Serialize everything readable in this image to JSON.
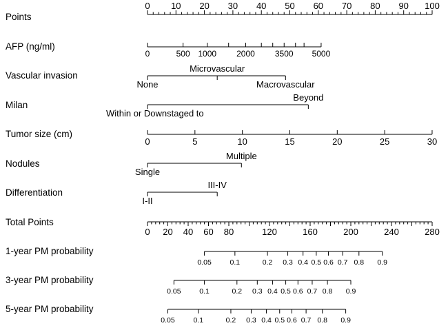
{
  "chart_data": {
    "type": "nomogram",
    "title": "",
    "rows": [
      {
        "name": "Points",
        "axis_range": [
          0,
          100
        ],
        "ticks": [
          {
            "value": 0,
            "label": "0"
          },
          {
            "value": 10,
            "label": "10"
          },
          {
            "value": 20,
            "label": "20"
          },
          {
            "value": 30,
            "label": "30"
          },
          {
            "value": 40,
            "label": "40"
          },
          {
            "value": 50,
            "label": "50"
          },
          {
            "value": 60,
            "label": "60"
          },
          {
            "value": 70,
            "label": "70"
          },
          {
            "value": 80,
            "label": "80"
          },
          {
            "value": 90,
            "label": "90"
          },
          {
            "value": 100,
            "label": "100"
          }
        ],
        "minor_step": 2
      },
      {
        "name": "AFP (ng/ml)",
        "ticks": [
          {
            "value": 0,
            "points": 0,
            "label": "0"
          },
          {
            "value": 500,
            "points": 12.5,
            "label": "500"
          },
          {
            "value": 1000,
            "points": 21,
            "label": "1000"
          },
          {
            "value": 1500,
            "points": 28.5
          },
          {
            "value": 2000,
            "points": 34.5,
            "label": "2000"
          },
          {
            "value": 2500,
            "points": 40
          },
          {
            "value": 3000,
            "points": 44
          },
          {
            "value": 3500,
            "points": 48,
            "label": "3500"
          },
          {
            "value": 4000,
            "points": 52
          },
          {
            "value": 4500,
            "points": 55
          },
          {
            "value": 5000,
            "points": 61,
            "label": "5000"
          }
        ]
      },
      {
        "name": "Vascular invasion",
        "categories": [
          {
            "label": "None",
            "points": 0
          },
          {
            "label": "Microvascular",
            "points": 24.5
          },
          {
            "label": "Macrovascular",
            "points": 48.5
          }
        ]
      },
      {
        "name": "Milan",
        "categories": [
          {
            "label": "Within or Downstaged to",
            "points": 0
          },
          {
            "label": "Beyond",
            "points": 56.5
          }
        ]
      },
      {
        "name": "Tumor size (cm)",
        "axis_range": [
          0,
          30
        ],
        "points_per_unit": 3.333,
        "ticks": [
          {
            "value": 0,
            "label": "0"
          },
          {
            "value": 5,
            "label": "5"
          },
          {
            "value": 10,
            "label": "10"
          },
          {
            "value": 15,
            "label": "15"
          },
          {
            "value": 20,
            "label": "20"
          },
          {
            "value": 25,
            "label": "25"
          },
          {
            "value": 30,
            "label": "30"
          }
        ]
      },
      {
        "name": "Nodules",
        "categories": [
          {
            "label": "Single",
            "points": 0
          },
          {
            "label": "Multiple",
            "points": 33
          }
        ]
      },
      {
        "name": "Differentiation",
        "categories": [
          {
            "label": "I-II",
            "points": 0
          },
          {
            "label": "III-IV",
            "points": 24.5
          }
        ]
      },
      {
        "name": "Total Points",
        "axis_range": [
          0,
          280
        ],
        "ticks": [
          {
            "value": 0,
            "label": "0"
          },
          {
            "value": 20,
            "label": "20"
          },
          {
            "value": 40,
            "label": "40"
          },
          {
            "value": 60,
            "label": "60"
          },
          {
            "value": 80,
            "label": "80"
          },
          {
            "value": 120,
            "label": "120"
          },
          {
            "value": 160,
            "label": "160"
          },
          {
            "value": 200,
            "label": "200"
          },
          {
            "value": 240,
            "label": "240"
          },
          {
            "value": 280,
            "label": "280"
          }
        ],
        "minor_step": 4
      },
      {
        "name": "1-year PM probability",
        "ticks": [
          {
            "value": 0.05,
            "total_points": 56,
            "label": "0.05"
          },
          {
            "value": 0.1,
            "total_points": 86,
            "label": "0.1"
          },
          {
            "value": 0.2,
            "total_points": 118,
            "label": "0.2"
          },
          {
            "value": 0.3,
            "total_points": 138,
            "label": "0.3"
          },
          {
            "value": 0.4,
            "total_points": 153,
            "label": "0.4"
          },
          {
            "value": 0.5,
            "total_points": 166,
            "label": "0.5"
          },
          {
            "value": 0.6,
            "total_points": 178,
            "label": "0.6"
          },
          {
            "value": 0.7,
            "total_points": 192,
            "label": "0.7"
          },
          {
            "value": 0.8,
            "total_points": 208,
            "label": "0.8"
          },
          {
            "value": 0.9,
            "total_points": 231,
            "label": "0.9"
          }
        ]
      },
      {
        "name": "3-year PM probability",
        "ticks": [
          {
            "value": 0.05,
            "total_points": 26,
            "label": "0.05"
          },
          {
            "value": 0.1,
            "total_points": 56,
            "label": "0.1"
          },
          {
            "value": 0.2,
            "total_points": 88,
            "label": "0.2"
          },
          {
            "value": 0.3,
            "total_points": 108,
            "label": "0.3"
          },
          {
            "value": 0.4,
            "total_points": 123,
            "label": "0.4"
          },
          {
            "value": 0.5,
            "total_points": 136,
            "label": "0.5"
          },
          {
            "value": 0.6,
            "total_points": 148,
            "label": "0.6"
          },
          {
            "value": 0.7,
            "total_points": 162,
            "label": "0.7"
          },
          {
            "value": 0.8,
            "total_points": 177,
            "label": "0.8"
          },
          {
            "value": 0.9,
            "total_points": 200,
            "label": "0.9"
          }
        ]
      },
      {
        "name": "5-year PM probability",
        "ticks": [
          {
            "value": 0.05,
            "total_points": 20,
            "label": "0.05"
          },
          {
            "value": 0.1,
            "total_points": 50,
            "label": "0.1"
          },
          {
            "value": 0.2,
            "total_points": 82,
            "label": "0.2"
          },
          {
            "value": 0.3,
            "total_points": 102,
            "label": "0.3"
          },
          {
            "value": 0.4,
            "total_points": 117,
            "label": "0.4"
          },
          {
            "value": 0.5,
            "total_points": 130,
            "label": "0.5"
          },
          {
            "value": 0.6,
            "total_points": 142,
            "label": "0.6"
          },
          {
            "value": 0.7,
            "total_points": 156,
            "label": "0.7"
          },
          {
            "value": 0.8,
            "total_points": 172,
            "label": "0.8"
          },
          {
            "value": 0.9,
            "total_points": 195,
            "label": "0.9"
          }
        ]
      }
    ]
  }
}
